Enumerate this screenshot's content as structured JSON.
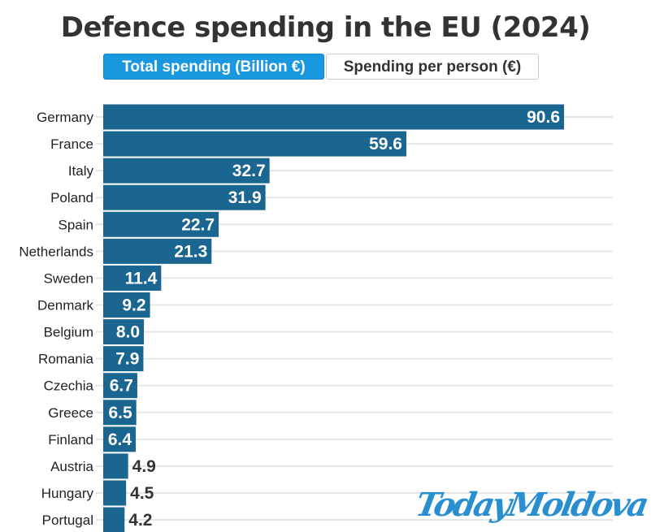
{
  "title": "Defence spending in the EU (2024)",
  "toggle": {
    "active_label": "Total spending (Billion €)",
    "inactive_label": "Spending per person (€)",
    "active_color": "#1997df"
  },
  "watermark": "TodayMoldova",
  "chart_data": {
    "type": "bar",
    "orientation": "horizontal",
    "title": "Defence spending in the EU (2024)",
    "categories": [
      "Germany",
      "France",
      "Italy",
      "Poland",
      "Spain",
      "Netherlands",
      "Sweden",
      "Denmark",
      "Belgium",
      "Romania",
      "Czechia",
      "Greece",
      "Finland",
      "Austria",
      "Hungary",
      "Portugal"
    ],
    "values": [
      90.6,
      59.6,
      32.7,
      31.9,
      22.7,
      21.3,
      11.4,
      9.2,
      8.0,
      7.9,
      6.7,
      6.5,
      6.4,
      4.9,
      4.5,
      4.2
    ],
    "labels": [
      "90.6",
      "59.6",
      "32.7",
      "31.9",
      "22.7",
      "21.3",
      "11.4",
      "9.2",
      "8.0",
      "7.9",
      "6.7",
      "6.5",
      "6.4",
      "4.9",
      "4.5",
      "4.2"
    ],
    "bar_color": "#1b6591",
    "grid": true,
    "xlim": [
      0,
      100
    ]
  }
}
